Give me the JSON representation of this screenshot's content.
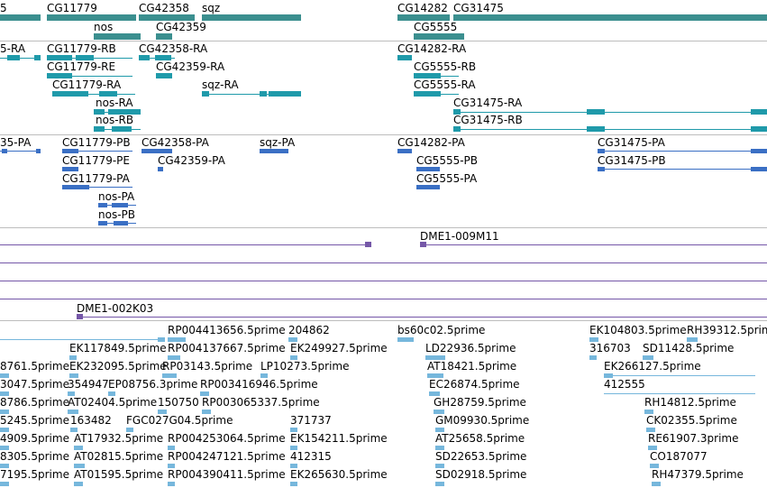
{
  "colors": {
    "gene": "#3b8f8f",
    "transcript": "#1f9aaa",
    "protein": "#3a6fc4",
    "clone": "#7557a8",
    "est": "#76b7dc",
    "separator": "#bdbdbd"
  },
  "tracks": {
    "genes": {
      "labels": [
        "5",
        "CG11779",
        "CG42358",
        "sqz",
        "nos",
        "CG42359",
        "CG14282",
        "CG31475",
        "CG5555"
      ]
    },
    "transcripts": {
      "labels": [
        "5-RA",
        "CG11779-RB",
        "CG42358-RA",
        "CG14282-RA",
        "CG11779-RE",
        "CG42359-RA",
        "CG5555-RB",
        "CG11779-RA",
        "sqz-RA",
        "CG5555-RA",
        "nos-RA",
        "CG31475-RA",
        "nos-RB",
        "CG31475-RB"
      ]
    },
    "proteins": {
      "labels": [
        "35-PA",
        "CG11779-PB",
        "CG42358-PA",
        "sqz-PA",
        "CG14282-PA",
        "CG31475-PA",
        "CG11779-PE",
        "CG42359-PA",
        "CG5555-PB",
        "CG31475-PB",
        "CG11779-PA",
        "CG5555-PA",
        "nos-PA",
        "nos-PB"
      ]
    },
    "clones": {
      "labels": [
        "DME1-009M11",
        "DME1-002K03"
      ]
    },
    "ests": {
      "labels": [
        "RP004413656.5prime",
        "204862",
        "bs60c02.5prime",
        "EK104803.5prime",
        "RH39312.5prime",
        "EK117849.5prime",
        "RP004137667.5prime",
        "EK249927.5prime",
        "LD22936.5prime",
        "316703",
        "SD11428.5prime",
        "8761.5prime",
        "EK232095.5prime",
        "RP03143.5prime",
        "LP10273.5prime",
        "AT18421.5prime",
        "EK266127.5prime",
        "3047.5prime",
        "354947",
        "EP08756.3prime",
        "RP003416946.5prime",
        "EC26874.5prime",
        "412555",
        "8786.5prime",
        "AT02404.5prime",
        "150750",
        "RP003065337.5prime",
        "GH28759.5prime",
        "RH14812.5prime",
        "5245.5prime",
        "163482",
        "FGC027G04.5prime",
        "371737",
        "GM09930.5prime",
        "CK02355.5prime",
        "4909.5prime",
        "AT17932.5prime",
        "RP004253064.5prime",
        "EK154211.5prime",
        "AT25658.5prime",
        "RE61907.3prime",
        "8305.5prime",
        "AT02815.5prime",
        "RP004247121.5prime",
        "412315",
        "SD22653.5prime",
        "CO187077",
        "7195.5prime",
        "AT01595.5prime",
        "RP004390411.5prime",
        "EK265630.5prime",
        "SD02918.5prime",
        "RH47379.5prime"
      ]
    }
  }
}
